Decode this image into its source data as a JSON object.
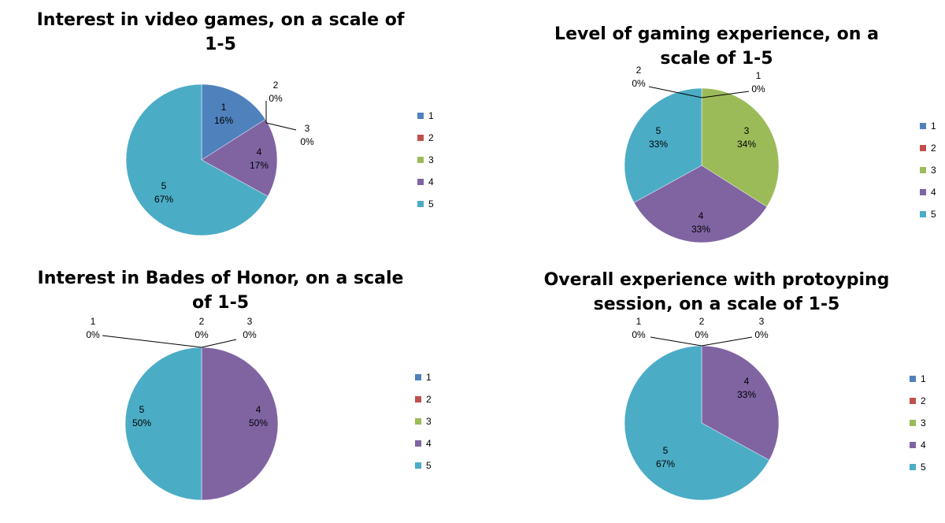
{
  "colors": {
    "1": "#4F81BD",
    "2": "#C0504D",
    "3": "#9BBB59",
    "4": "#8064A2",
    "5": "#4BACC6"
  },
  "chart_data": [
    {
      "type": "pie",
      "title_lines": [
        "Interest in video games, on a scale of",
        "1-5"
      ],
      "categories": [
        "1",
        "2",
        "3",
        "4",
        "5"
      ],
      "values": [
        16,
        0,
        0,
        17,
        67
      ],
      "labels": [
        "16%",
        "0%",
        "0%",
        "17%",
        "67%"
      ],
      "legend": [
        "1",
        "2",
        "3",
        "4",
        "5"
      ]
    },
    {
      "type": "pie",
      "title_lines": [
        "Level of gaming experience, on a",
        "scale of 1-5"
      ],
      "categories": [
        "1",
        "2",
        "3",
        "4",
        "5"
      ],
      "values": [
        0,
        0,
        34,
        33,
        33
      ],
      "labels": [
        "0%",
        "0%",
        "34%",
        "33%",
        "33%"
      ],
      "legend": [
        "1",
        "2",
        "3",
        "4",
        "5"
      ]
    },
    {
      "type": "pie",
      "title_lines": [
        "Interest in Bades of Honor, on a scale",
        "of 1-5"
      ],
      "categories": [
        "1",
        "2",
        "3",
        "4",
        "5"
      ],
      "values": [
        0,
        0,
        0,
        50,
        50
      ],
      "labels": [
        "0%",
        "0%",
        "0%",
        "50%",
        "50%"
      ],
      "legend": [
        "1",
        "2",
        "3",
        "4",
        "5"
      ]
    },
    {
      "type": "pie",
      "title_lines": [
        "Overall experience with protoyping",
        "session, on a scale of 1-5"
      ],
      "categories": [
        "1",
        "2",
        "3",
        "4",
        "5"
      ],
      "values": [
        0,
        0,
        0,
        33,
        67
      ],
      "labels": [
        "0%",
        "0%",
        "0%",
        "33%",
        "67%"
      ],
      "legend": [
        "1",
        "2",
        "3",
        "4",
        "5"
      ]
    }
  ]
}
